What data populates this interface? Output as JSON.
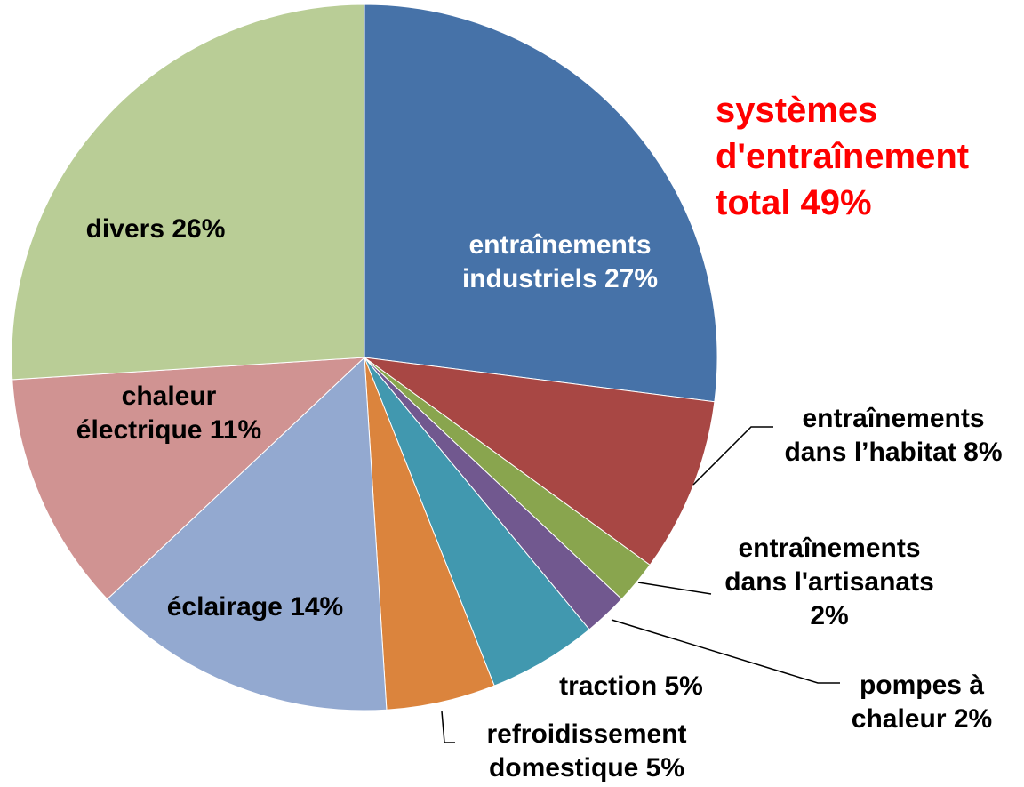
{
  "chart_data": {
    "type": "pie",
    "categories": [
      "entraînements industriels",
      "entraînements dans l’habitat",
      "entraînements dans l'artisanats",
      "pompes à chaleur",
      "traction",
      "refroidissement domestique",
      "éclairage",
      "chaleur électrique",
      "divers"
    ],
    "values": [
      27,
      8,
      2,
      2,
      5,
      5,
      14,
      11,
      26
    ],
    "value_labels": [
      "27%",
      "8%",
      "2%",
      "2%",
      "5%",
      "5%",
      "14%",
      "11%",
      "26%"
    ],
    "colors": [
      "#4672a8",
      "#a84744",
      "#89a54e",
      "#71588f",
      "#4198af",
      "#db843d",
      "#93a9d0",
      "#d09392",
      "#b9cd96"
    ],
    "annotations": [
      "systèmes d'entraînement total 49%"
    ]
  }
}
